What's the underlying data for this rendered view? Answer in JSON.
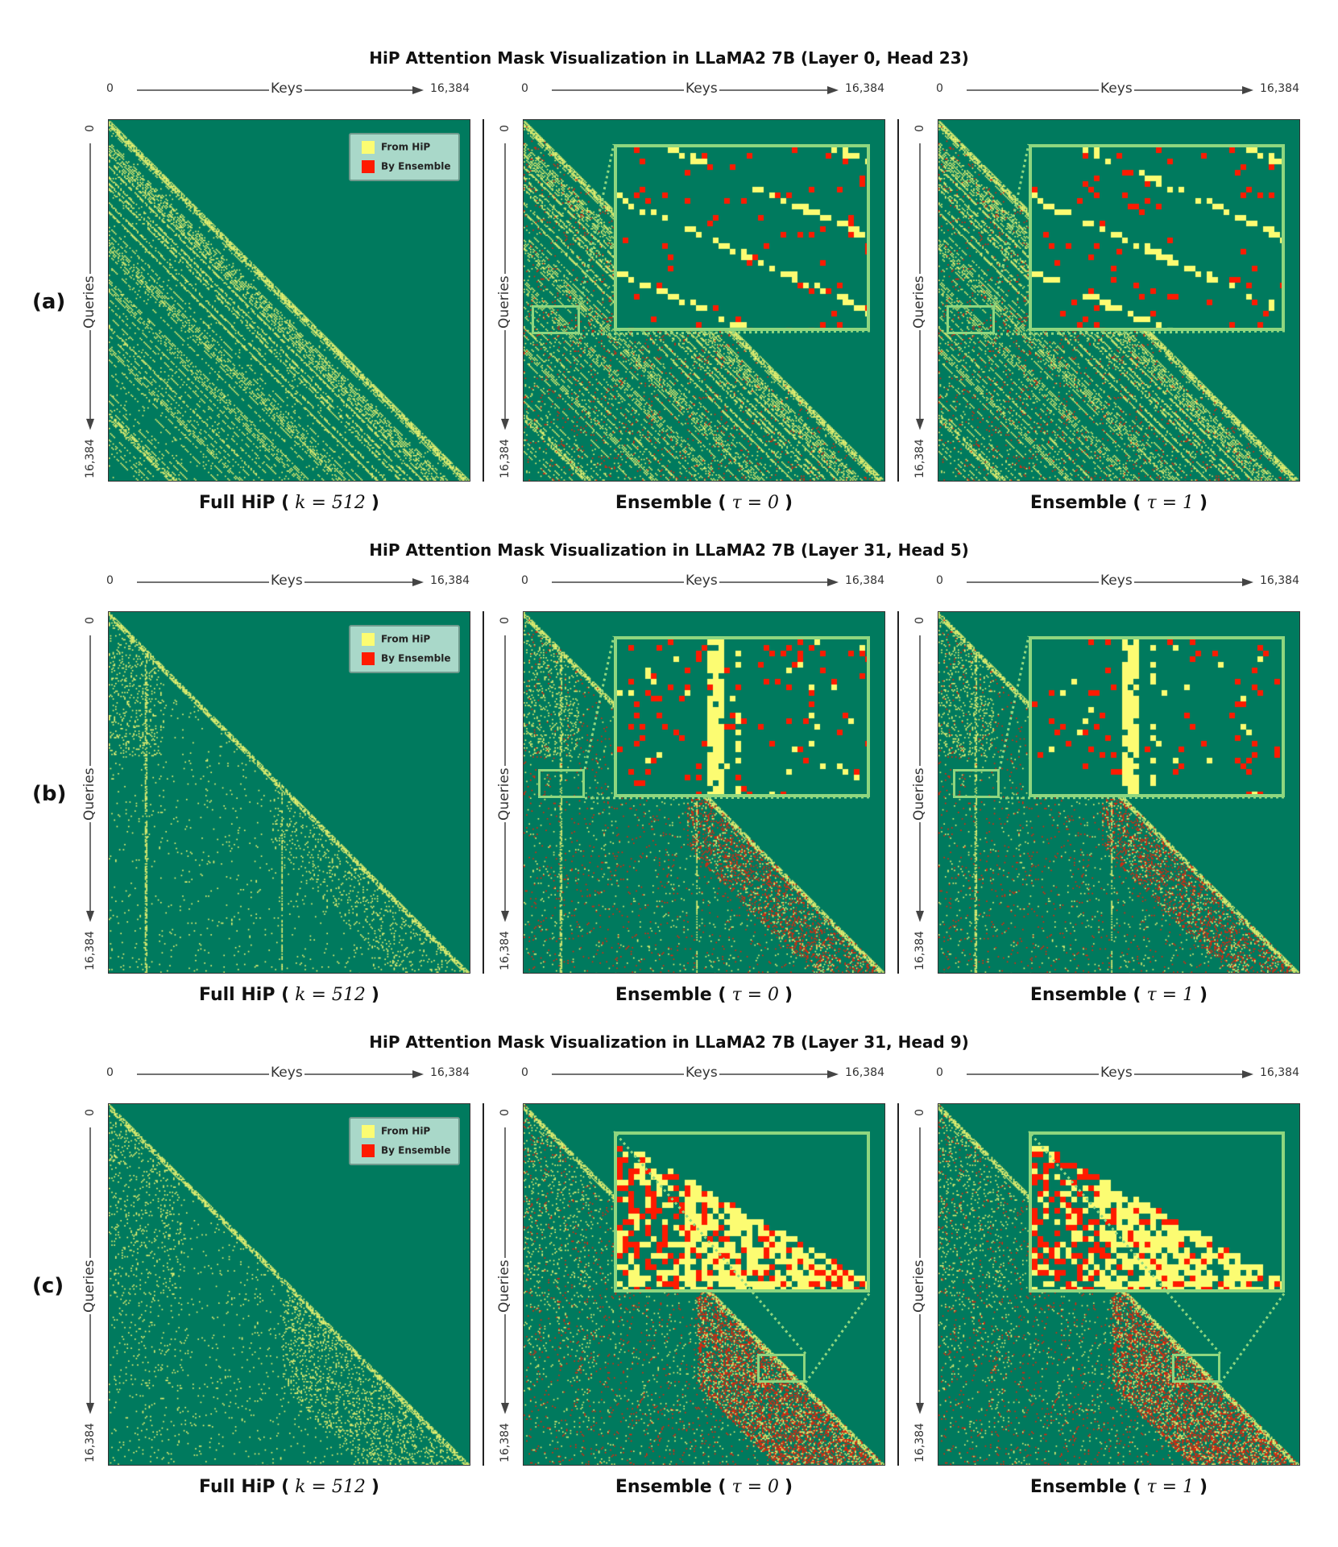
{
  "colors": {
    "background": "#007a5e",
    "hip": "#fcfc72",
    "ensemble": "#ff1a00",
    "highlight": "#8fd67f"
  },
  "legend": {
    "items": [
      {
        "label": "From HiP",
        "color": "#fcfc72"
      },
      {
        "label": "By Ensemble",
        "color": "#ff1a00"
      }
    ]
  },
  "chart_data": [
    {
      "type": "heatmap",
      "row_label": "(a)",
      "title": "HiP Attention Mask Visualization in LLaMA2 7B (Layer 0, Head 23)",
      "pattern": "diagonal-stripes",
      "xlabel": "Keys",
      "ylabel": "Queries",
      "x_ticks": [
        "0",
        "16,384"
      ],
      "y_ticks": [
        "0",
        "16,384"
      ],
      "xlim": [
        0,
        16384
      ],
      "ylim": [
        0,
        16384
      ],
      "panels": [
        {
          "caption_prefix": "Full HiP (",
          "caption_math": "k = 512",
          "caption_suffix": ")",
          "legend": true,
          "ensemble": false
        },
        {
          "caption_prefix": "Ensemble (",
          "caption_math": "τ = 0",
          "caption_suffix": ")",
          "legend": false,
          "ensemble": true
        },
        {
          "caption_prefix": "Ensemble (",
          "caption_math": "τ = 1",
          "caption_suffix": ")",
          "legend": false,
          "ensemble": true
        }
      ]
    },
    {
      "type": "heatmap",
      "row_label": "(b)",
      "title": "HiP Attention Mask Visualization in LLaMA2 7B (Layer 31, Head 5)",
      "pattern": "vertical-lines",
      "xlabel": "Keys",
      "ylabel": "Queries",
      "x_ticks": [
        "0",
        "16,384"
      ],
      "y_ticks": [
        "0",
        "16,384"
      ],
      "xlim": [
        0,
        16384
      ],
      "ylim": [
        0,
        16384
      ],
      "panels": [
        {
          "caption_prefix": "Full HiP (",
          "caption_math": "k = 512",
          "caption_suffix": ")",
          "legend": true,
          "ensemble": false
        },
        {
          "caption_prefix": "Ensemble (",
          "caption_math": "τ = 0",
          "caption_suffix": ")",
          "legend": false,
          "ensemble": true
        },
        {
          "caption_prefix": "Ensemble (",
          "caption_math": "τ = 1",
          "caption_suffix": ")",
          "legend": false,
          "ensemble": true
        }
      ]
    },
    {
      "type": "heatmap",
      "row_label": "(c)",
      "title": "HiP Attention Mask Visualization in LLaMA2 7B (Layer 31, Head 9)",
      "pattern": "dense-lower-triangle",
      "xlabel": "Keys",
      "ylabel": "Queries",
      "x_ticks": [
        "0",
        "16,384"
      ],
      "y_ticks": [
        "0",
        "16,384"
      ],
      "xlim": [
        0,
        16384
      ],
      "ylim": [
        0,
        16384
      ],
      "panels": [
        {
          "caption_prefix": "Full HiP (",
          "caption_math": "k = 512",
          "caption_suffix": ")",
          "legend": true,
          "ensemble": false
        },
        {
          "caption_prefix": "Ensemble (",
          "caption_math": "τ = 0",
          "caption_suffix": ")",
          "legend": false,
          "ensemble": true
        },
        {
          "caption_prefix": "Ensemble (",
          "caption_math": "τ = 1",
          "caption_suffix": ")",
          "legend": false,
          "ensemble": true
        }
      ]
    }
  ]
}
